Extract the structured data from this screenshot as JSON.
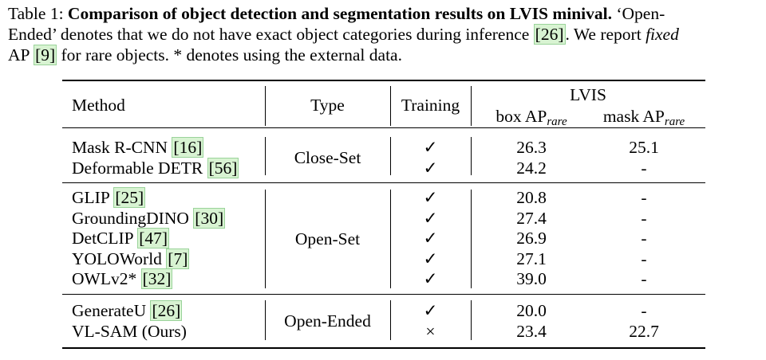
{
  "caption": {
    "label": "Table 1:",
    "title": "Comparison of object detection and segmentation results on LVIS minival.",
    "line1_rest": "‘Open-",
    "line2a": "Ended’ denotes that we do not have exact object categories during inference ",
    "ref_a": "[26]",
    "line2b": ". We report ",
    "fixed": "fixed",
    "line3a": "AP ",
    "ref_b": "[9]",
    "line3b": " for rare objects. * denotes using the external data."
  },
  "table": {
    "headers": {
      "method": "Method",
      "type": "Type",
      "training": "Training",
      "lvis": "LVIS",
      "box_ap": "box AP",
      "mask_ap": "mask AP",
      "sub": "rare"
    },
    "groups": [
      {
        "type": "Close-Set",
        "rows": [
          {
            "name": "Mask R-CNN ",
            "ref": "[16]",
            "training": "✓",
            "box": "26.3",
            "mask": "25.1"
          },
          {
            "name": "Deformable DETR ",
            "ref": "[56]",
            "training": "✓",
            "box": "24.2",
            "mask": "-"
          }
        ]
      },
      {
        "type": "Open-Set",
        "rows": [
          {
            "name": "GLIP ",
            "ref": "[25]",
            "training": "✓",
            "box": "20.8",
            "mask": "-"
          },
          {
            "name": "GroundingDINO ",
            "ref": "[30]",
            "training": "✓",
            "box": "27.4",
            "mask": "-"
          },
          {
            "name": "DetCLIP ",
            "ref": "[47]",
            "training": "✓",
            "box": "26.9",
            "mask": "-"
          },
          {
            "name": "YOLOWorld ",
            "ref": "[7]",
            "training": "✓",
            "box": "27.1",
            "mask": "-"
          },
          {
            "name": "OWLv2* ",
            "ref": "[32]",
            "training": "✓",
            "box": "39.0",
            "mask": "-"
          }
        ]
      },
      {
        "type": "Open-Ended",
        "rows": [
          {
            "name": "GenerateU ",
            "ref": "[26]",
            "training": "✓",
            "box": "20.0",
            "mask": "-"
          },
          {
            "name": "VL-SAM (Ours)",
            "ref": "",
            "training": "×",
            "box": "23.4",
            "mask": "22.7"
          }
        ]
      }
    ]
  }
}
